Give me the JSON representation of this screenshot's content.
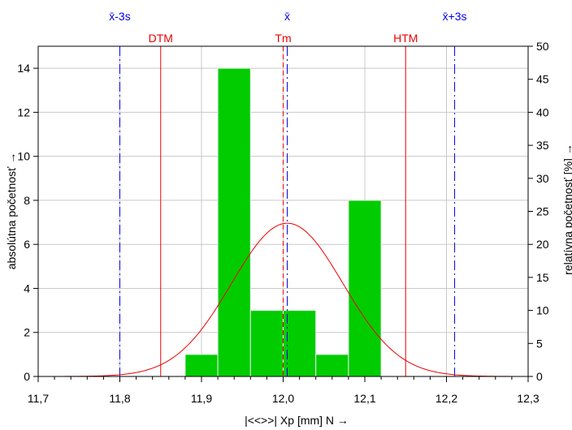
{
  "chart_data": {
    "type": "bar",
    "xlabel": "|<<>>|  Xp [mm]  N →",
    "ylabel_left": "absolútna početnosť →",
    "ylabel_right": "relatívna početnosť  [%] →",
    "xlim": [
      11.7,
      12.3
    ],
    "ylim_left": [
      0,
      15
    ],
    "ylim_right": [
      0,
      50
    ],
    "x_ticks": [
      11.7,
      11.8,
      11.9,
      12.0,
      12.1,
      12.2,
      12.3
    ],
    "x_tick_labels": [
      "11,7",
      "11,8",
      "11,9",
      "12,0",
      "12,1",
      "12,2",
      "12,3"
    ],
    "y_left_ticks": [
      0,
      2,
      4,
      6,
      8,
      10,
      12,
      14
    ],
    "y_left_tick_labels": [
      "0",
      "2",
      "4",
      "6",
      "8",
      "10",
      "12",
      "14"
    ],
    "y_right_ticks": [
      0,
      5,
      10,
      15,
      20,
      25,
      30,
      35,
      40,
      45,
      50
    ],
    "y_right_tick_labels": [
      "0",
      "5",
      "10",
      "15",
      "20",
      "25",
      "30",
      "35",
      "40",
      "45",
      "50"
    ],
    "bins": [
      {
        "from": 11.88,
        "to": 11.92,
        "count": 1
      },
      {
        "from": 11.92,
        "to": 11.96,
        "count": 14
      },
      {
        "from": 11.96,
        "to": 12.0,
        "count": 3
      },
      {
        "from": 12.0,
        "to": 12.04,
        "count": 3
      },
      {
        "from": 12.04,
        "to": 12.08,
        "count": 1
      },
      {
        "from": 12.08,
        "to": 12.12,
        "count": 8
      }
    ],
    "normal_curve": {
      "mean": 12.005,
      "sd": 0.0683,
      "peak_percent": 23.2
    },
    "reference_lines": [
      {
        "label": "x̄-3s",
        "x": 11.8,
        "color": "#0000ee",
        "style": "dashdot",
        "label_row": "top"
      },
      {
        "label": "DTM",
        "x": 11.85,
        "color": "#ee0000",
        "style": "solid",
        "label_row": "second"
      },
      {
        "label": "x̄",
        "x": 12.005,
        "color": "#0000ee",
        "style": "dashdot",
        "label_row": "top"
      },
      {
        "label": "Tm",
        "x": 12.0,
        "color": "#ee0000",
        "style": "dashed",
        "label_row": "second"
      },
      {
        "label": "HTM",
        "x": 12.15,
        "color": "#ee0000",
        "style": "solid",
        "label_row": "second"
      },
      {
        "label": "x̄+3s",
        "x": 12.21,
        "color": "#0000ee",
        "style": "dashdot",
        "label_row": "top"
      }
    ],
    "grid": true,
    "colors": {
      "bar_fill": "#00cc00",
      "bar_stroke": "#eeeeee",
      "curve": "#ee0000",
      "grid": "#c8c8c8"
    }
  }
}
